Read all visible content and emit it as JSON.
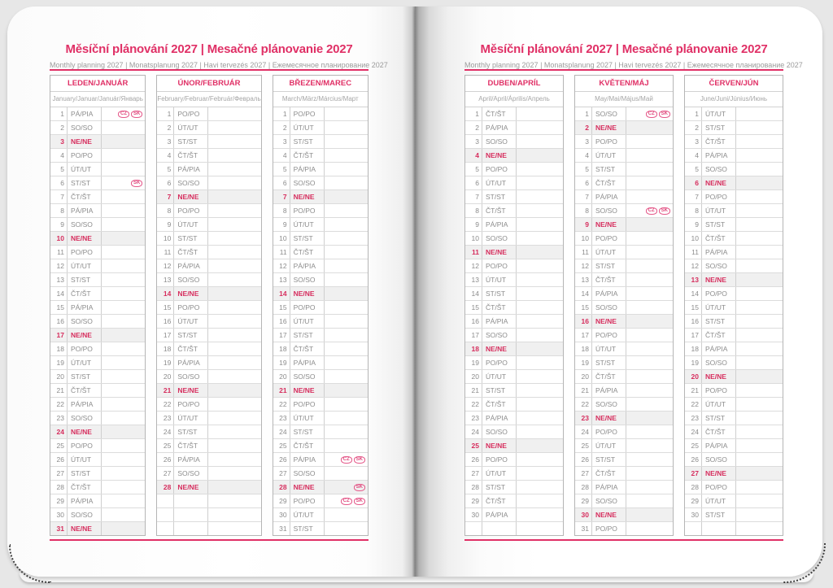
{
  "colors": {
    "accent": "#e03066",
    "sunday_text": "#d62e5e",
    "sunday_bg": "#f0f0f0",
    "day_text": "#8c8c8c"
  },
  "badges": {
    "cz_label": "CZ",
    "sk_label": "SK"
  },
  "pages": [
    {
      "title": "Měsíční plánování 2027 | Mesačné plánovanie 2027",
      "subtitle": "Monthly planning 2027 | Monatsplanung 2027 | Havi tervezés 2027 | Ежемесячное планирование 2027",
      "months": [
        {
          "name": "LEDEN/JANUÁR",
          "subtitle": "January/Januar/Január/Январь",
          "rows": [
            {
              "n": "1",
              "d": "PÁ/PIA",
              "b": [
                "CZ",
                "SK"
              ]
            },
            {
              "n": "2",
              "d": "SO/SO"
            },
            {
              "n": "3",
              "d": "NE/NE",
              "s": 1
            },
            {
              "n": "4",
              "d": "PO/PO"
            },
            {
              "n": "5",
              "d": "ÚT/UT"
            },
            {
              "n": "6",
              "d": "ST/ST",
              "b": [
                "SK"
              ]
            },
            {
              "n": "7",
              "d": "ČT/ŠT"
            },
            {
              "n": "8",
              "d": "PÁ/PIA"
            },
            {
              "n": "9",
              "d": "SO/SO"
            },
            {
              "n": "10",
              "d": "NE/NE",
              "s": 1
            },
            {
              "n": "11",
              "d": "PO/PO"
            },
            {
              "n": "12",
              "d": "ÚT/UT"
            },
            {
              "n": "13",
              "d": "ST/ST"
            },
            {
              "n": "14",
              "d": "ČT/ŠT"
            },
            {
              "n": "15",
              "d": "PÁ/PIA"
            },
            {
              "n": "16",
              "d": "SO/SO"
            },
            {
              "n": "17",
              "d": "NE/NE",
              "s": 1
            },
            {
              "n": "18",
              "d": "PO/PO"
            },
            {
              "n": "19",
              "d": "ÚT/UT"
            },
            {
              "n": "20",
              "d": "ST/ST"
            },
            {
              "n": "21",
              "d": "ČT/ŠT"
            },
            {
              "n": "22",
              "d": "PÁ/PIA"
            },
            {
              "n": "23",
              "d": "SO/SO"
            },
            {
              "n": "24",
              "d": "NE/NE",
              "s": 1
            },
            {
              "n": "25",
              "d": "PO/PO"
            },
            {
              "n": "26",
              "d": "ÚT/UT"
            },
            {
              "n": "27",
              "d": "ST/ST"
            },
            {
              "n": "28",
              "d": "ČT/ŠT"
            },
            {
              "n": "29",
              "d": "PÁ/PIA"
            },
            {
              "n": "30",
              "d": "SO/SO"
            },
            {
              "n": "31",
              "d": "NE/NE",
              "s": 1
            }
          ]
        },
        {
          "name": "ÚNOR/FEBRUÁR",
          "subtitle": "February/Februar/Február/Февраль",
          "rows": [
            {
              "n": "1",
              "d": "PO/PO"
            },
            {
              "n": "2",
              "d": "ÚT/UT"
            },
            {
              "n": "3",
              "d": "ST/ST"
            },
            {
              "n": "4",
              "d": "ČT/ŠT"
            },
            {
              "n": "5",
              "d": "PÁ/PIA"
            },
            {
              "n": "6",
              "d": "SO/SO"
            },
            {
              "n": "7",
              "d": "NE/NE",
              "s": 1
            },
            {
              "n": "8",
              "d": "PO/PO"
            },
            {
              "n": "9",
              "d": "ÚT/UT"
            },
            {
              "n": "10",
              "d": "ST/ST"
            },
            {
              "n": "11",
              "d": "ČT/ŠT"
            },
            {
              "n": "12",
              "d": "PÁ/PIA"
            },
            {
              "n": "13",
              "d": "SO/SO"
            },
            {
              "n": "14",
              "d": "NE/NE",
              "s": 1
            },
            {
              "n": "15",
              "d": "PO/PO"
            },
            {
              "n": "16",
              "d": "ÚT/UT"
            },
            {
              "n": "17",
              "d": "ST/ST"
            },
            {
              "n": "18",
              "d": "ČT/ŠT"
            },
            {
              "n": "19",
              "d": "PÁ/PIA"
            },
            {
              "n": "20",
              "d": "SO/SO"
            },
            {
              "n": "21",
              "d": "NE/NE",
              "s": 1
            },
            {
              "n": "22",
              "d": "PO/PO"
            },
            {
              "n": "23",
              "d": "ÚT/UT"
            },
            {
              "n": "24",
              "d": "ST/ST"
            },
            {
              "n": "25",
              "d": "ČT/ŠT"
            },
            {
              "n": "26",
              "d": "PÁ/PIA"
            },
            {
              "n": "27",
              "d": "SO/SO"
            },
            {
              "n": "28",
              "d": "NE/NE",
              "s": 1
            },
            {},
            {},
            {}
          ]
        },
        {
          "name": "BŘEZEN/MAREC",
          "subtitle": "March/März/Március/Март",
          "rows": [
            {
              "n": "1",
              "d": "PO/PO"
            },
            {
              "n": "2",
              "d": "ÚT/UT"
            },
            {
              "n": "3",
              "d": "ST/ST"
            },
            {
              "n": "4",
              "d": "ČT/ŠT"
            },
            {
              "n": "5",
              "d": "PÁ/PIA"
            },
            {
              "n": "6",
              "d": "SO/SO"
            },
            {
              "n": "7",
              "d": "NE/NE",
              "s": 1
            },
            {
              "n": "8",
              "d": "PO/PO"
            },
            {
              "n": "9",
              "d": "ÚT/UT"
            },
            {
              "n": "10",
              "d": "ST/ST"
            },
            {
              "n": "11",
              "d": "ČT/ŠT"
            },
            {
              "n": "12",
              "d": "PÁ/PIA"
            },
            {
              "n": "13",
              "d": "SO/SO"
            },
            {
              "n": "14",
              "d": "NE/NE",
              "s": 1
            },
            {
              "n": "15",
              "d": "PO/PO"
            },
            {
              "n": "16",
              "d": "ÚT/UT"
            },
            {
              "n": "17",
              "d": "ST/ST"
            },
            {
              "n": "18",
              "d": "ČT/ŠT"
            },
            {
              "n": "19",
              "d": "PÁ/PIA"
            },
            {
              "n": "20",
              "d": "SO/SO"
            },
            {
              "n": "21",
              "d": "NE/NE",
              "s": 1
            },
            {
              "n": "22",
              "d": "PO/PO"
            },
            {
              "n": "23",
              "d": "ÚT/UT"
            },
            {
              "n": "24",
              "d": "ST/ST"
            },
            {
              "n": "25",
              "d": "ČT/ŠT"
            },
            {
              "n": "26",
              "d": "PÁ/PIA",
              "b": [
                "CZ",
                "SK"
              ]
            },
            {
              "n": "27",
              "d": "SO/SO"
            },
            {
              "n": "28",
              "d": "NE/NE",
              "s": 1,
              "b": [
                "SK"
              ]
            },
            {
              "n": "29",
              "d": "PO/PO",
              "b": [
                "CZ",
                "SK"
              ]
            },
            {
              "n": "30",
              "d": "ÚT/UT"
            },
            {
              "n": "31",
              "d": "ST/ST"
            }
          ]
        }
      ]
    },
    {
      "title": "Měsíční plánování 2027 | Mesačné plánovanie 2027",
      "subtitle": "Monthly planning 2027 | Monatsplanung 2027 | Havi tervezés 2027 | Ежемесячное планирование 2027",
      "months": [
        {
          "name": "DUBEN/APRÍL",
          "subtitle": "April/April/Április/Апрель",
          "rows": [
            {
              "n": "1",
              "d": "ČT/ŠT"
            },
            {
              "n": "2",
              "d": "PÁ/PIA"
            },
            {
              "n": "3",
              "d": "SO/SO"
            },
            {
              "n": "4",
              "d": "NE/NE",
              "s": 1
            },
            {
              "n": "5",
              "d": "PO/PO"
            },
            {
              "n": "6",
              "d": "ÚT/UT"
            },
            {
              "n": "7",
              "d": "ST/ST"
            },
            {
              "n": "8",
              "d": "ČT/ŠT"
            },
            {
              "n": "9",
              "d": "PÁ/PIA"
            },
            {
              "n": "10",
              "d": "SO/SO"
            },
            {
              "n": "11",
              "d": "NE/NE",
              "s": 1
            },
            {
              "n": "12",
              "d": "PO/PO"
            },
            {
              "n": "13",
              "d": "ÚT/UT"
            },
            {
              "n": "14",
              "d": "ST/ST"
            },
            {
              "n": "15",
              "d": "ČT/ŠT"
            },
            {
              "n": "16",
              "d": "PÁ/PIA"
            },
            {
              "n": "17",
              "d": "SO/SO"
            },
            {
              "n": "18",
              "d": "NE/NE",
              "s": 1
            },
            {
              "n": "19",
              "d": "PO/PO"
            },
            {
              "n": "20",
              "d": "ÚT/UT"
            },
            {
              "n": "21",
              "d": "ST/ST"
            },
            {
              "n": "22",
              "d": "ČT/ŠT"
            },
            {
              "n": "23",
              "d": "PÁ/PIA"
            },
            {
              "n": "24",
              "d": "SO/SO"
            },
            {
              "n": "25",
              "d": "NE/NE",
              "s": 1
            },
            {
              "n": "26",
              "d": "PO/PO"
            },
            {
              "n": "27",
              "d": "ÚT/UT"
            },
            {
              "n": "28",
              "d": "ST/ST"
            },
            {
              "n": "29",
              "d": "ČT/ŠT"
            },
            {
              "n": "30",
              "d": "PÁ/PIA"
            },
            {}
          ]
        },
        {
          "name": "KVĚTEN/MÁJ",
          "subtitle": "May/Mai/Május/Май",
          "rows": [
            {
              "n": "1",
              "d": "SO/SO",
              "b": [
                "CZ",
                "SK"
              ]
            },
            {
              "n": "2",
              "d": "NE/NE",
              "s": 1
            },
            {
              "n": "3",
              "d": "PO/PO"
            },
            {
              "n": "4",
              "d": "ÚT/UT"
            },
            {
              "n": "5",
              "d": "ST/ST"
            },
            {
              "n": "6",
              "d": "ČT/ŠT"
            },
            {
              "n": "7",
              "d": "PÁ/PIA"
            },
            {
              "n": "8",
              "d": "SO/SO",
              "b": [
                "CZ",
                "SK"
              ]
            },
            {
              "n": "9",
              "d": "NE/NE",
              "s": 1
            },
            {
              "n": "10",
              "d": "PO/PO"
            },
            {
              "n": "11",
              "d": "ÚT/UT"
            },
            {
              "n": "12",
              "d": "ST/ST"
            },
            {
              "n": "13",
              "d": "ČT/ŠT"
            },
            {
              "n": "14",
              "d": "PÁ/PIA"
            },
            {
              "n": "15",
              "d": "SO/SO"
            },
            {
              "n": "16",
              "d": "NE/NE",
              "s": 1
            },
            {
              "n": "17",
              "d": "PO/PO"
            },
            {
              "n": "18",
              "d": "ÚT/UT"
            },
            {
              "n": "19",
              "d": "ST/ST"
            },
            {
              "n": "20",
              "d": "ČT/ŠT"
            },
            {
              "n": "21",
              "d": "PÁ/PIA"
            },
            {
              "n": "22",
              "d": "SO/SO"
            },
            {
              "n": "23",
              "d": "NE/NE",
              "s": 1
            },
            {
              "n": "24",
              "d": "PO/PO"
            },
            {
              "n": "25",
              "d": "ÚT/UT"
            },
            {
              "n": "26",
              "d": "ST/ST"
            },
            {
              "n": "27",
              "d": "ČT/ŠT"
            },
            {
              "n": "28",
              "d": "PÁ/PIA"
            },
            {
              "n": "29",
              "d": "SO/SO"
            },
            {
              "n": "30",
              "d": "NE/NE",
              "s": 1
            },
            {
              "n": "31",
              "d": "PO/PO"
            }
          ]
        },
        {
          "name": "ČERVEN/JÚN",
          "subtitle": "June/Juni/Június/Июнь",
          "rows": [
            {
              "n": "1",
              "d": "ÚT/UT"
            },
            {
              "n": "2",
              "d": "ST/ST"
            },
            {
              "n": "3",
              "d": "ČT/ŠT"
            },
            {
              "n": "4",
              "d": "PÁ/PIA"
            },
            {
              "n": "5",
              "d": "SO/SO"
            },
            {
              "n": "6",
              "d": "NE/NE",
              "s": 1
            },
            {
              "n": "7",
              "d": "PO/PO"
            },
            {
              "n": "8",
              "d": "ÚT/UT"
            },
            {
              "n": "9",
              "d": "ST/ST"
            },
            {
              "n": "10",
              "d": "ČT/ŠT"
            },
            {
              "n": "11",
              "d": "PÁ/PIA"
            },
            {
              "n": "12",
              "d": "SO/SO"
            },
            {
              "n": "13",
              "d": "NE/NE",
              "s": 1
            },
            {
              "n": "14",
              "d": "PO/PO"
            },
            {
              "n": "15",
              "d": "ÚT/UT"
            },
            {
              "n": "16",
              "d": "ST/ST"
            },
            {
              "n": "17",
              "d": "ČT/ŠT"
            },
            {
              "n": "18",
              "d": "PÁ/PIA"
            },
            {
              "n": "19",
              "d": "SO/SO"
            },
            {
              "n": "20",
              "d": "NE/NE",
              "s": 1
            },
            {
              "n": "21",
              "d": "PO/PO"
            },
            {
              "n": "22",
              "d": "ÚT/UT"
            },
            {
              "n": "23",
              "d": "ST/ST"
            },
            {
              "n": "24",
              "d": "ČT/ŠT"
            },
            {
              "n": "25",
              "d": "PÁ/PIA"
            },
            {
              "n": "26",
              "d": "SO/SO"
            },
            {
              "n": "27",
              "d": "NE/NE",
              "s": 1
            },
            {
              "n": "28",
              "d": "PO/PO"
            },
            {
              "n": "29",
              "d": "ÚT/UT"
            },
            {
              "n": "30",
              "d": "ST/ST"
            },
            {}
          ]
        }
      ]
    }
  ]
}
